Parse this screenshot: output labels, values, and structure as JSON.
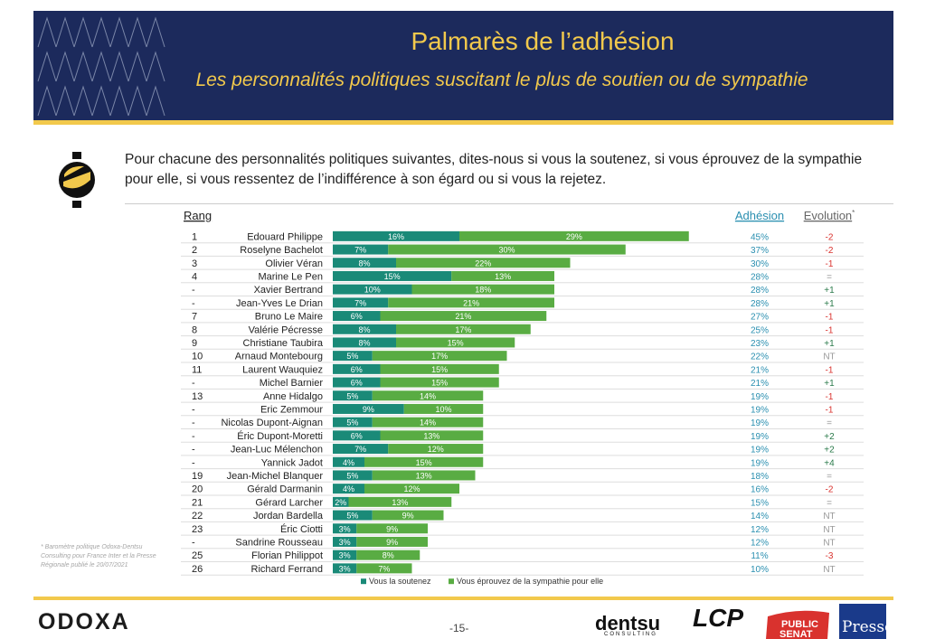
{
  "header": {
    "title": "Palmarès de l’adhésion",
    "subtitle": "Les personnalités politiques suscitant le plus de soutien ou de sympathie"
  },
  "question": "Pour chacune des personnalités politiques suivantes, dites-nous si vous la soutenez, si vous éprouvez de la sympathie pour elle, si vous ressentez de l’indifférence à son égard ou si vous la rejetez.",
  "footnote": "* Baromètre politique Odoxa-Dentsu Consulting pour France Inter et la Presse Régionale publié le 20/07/2021",
  "footer": {
    "brand": "ODOXA",
    "page": "-15-",
    "dentsu": "dentsu",
    "dentsu_sub": "CONSULTING",
    "lcp": "LCP",
    "public_senat": [
      "PUBLIC",
      "SENAT"
    ],
    "presse": "Presse"
  },
  "colors": {
    "navy": "#1c2a5c",
    "gold": "#f2c94c",
    "teal": "#1a8a78",
    "green": "#59ac43",
    "red": "#d9322e",
    "positive": "#2a7a4a",
    "neutral": "#999999"
  },
  "chart_data": {
    "type": "bar",
    "stacked": true,
    "orientation": "horizontal",
    "col_headers": {
      "rank": "Rang",
      "adhesion": "Adhésion",
      "evolution": "Evolution",
      "evolution_mark": "*"
    },
    "series": [
      {
        "name": "Vous la soutenez",
        "key": "support"
      },
      {
        "name": "Vous éprouvez de la sympathie pour elle",
        "key": "sympathy"
      }
    ],
    "rows": [
      {
        "rank": "1",
        "name": "Edouard Philippe",
        "support": 16,
        "sympathy": 29,
        "adhesion": "45%",
        "evolution": "-2"
      },
      {
        "rank": "2",
        "name": "Roselyne Bachelot",
        "support": 7,
        "sympathy": 30,
        "adhesion": "37%",
        "evolution": "-2"
      },
      {
        "rank": "3",
        "name": "Olivier Véran",
        "support": 8,
        "sympathy": 22,
        "adhesion": "30%",
        "evolution": "-1"
      },
      {
        "rank": "4",
        "name": "Marine Le Pen",
        "support": 15,
        "sympathy": 13,
        "adhesion": "28%",
        "evolution": "="
      },
      {
        "rank": "-",
        "name": "Xavier Bertrand",
        "support": 10,
        "sympathy": 18,
        "adhesion": "28%",
        "evolution": "+1"
      },
      {
        "rank": "-",
        "name": "Jean-Yves Le Drian",
        "support": 7,
        "sympathy": 21,
        "adhesion": "28%",
        "evolution": "+1"
      },
      {
        "rank": "7",
        "name": "Bruno Le Maire",
        "support": 6,
        "sympathy": 21,
        "adhesion": "27%",
        "evolution": "-1"
      },
      {
        "rank": "8",
        "name": "Valérie Pécresse",
        "support": 8,
        "sympathy": 17,
        "adhesion": "25%",
        "evolution": "-1"
      },
      {
        "rank": "9",
        "name": "Christiane Taubira",
        "support": 8,
        "sympathy": 15,
        "adhesion": "23%",
        "evolution": "+1"
      },
      {
        "rank": "10",
        "name": "Arnaud Montebourg",
        "support": 5,
        "sympathy": 17,
        "adhesion": "22%",
        "evolution": "NT"
      },
      {
        "rank": "11",
        "name": "Laurent Wauquiez",
        "support": 6,
        "sympathy": 15,
        "adhesion": "21%",
        "evolution": "-1"
      },
      {
        "rank": "-",
        "name": "Michel Barnier",
        "support": 6,
        "sympathy": 15,
        "adhesion": "21%",
        "evolution": "+1"
      },
      {
        "rank": "13",
        "name": "Anne Hidalgo",
        "support": 5,
        "sympathy": 14,
        "adhesion": "19%",
        "evolution": "-1"
      },
      {
        "rank": "-",
        "name": "Eric Zemmour",
        "support": 9,
        "sympathy": 10,
        "adhesion": "19%",
        "evolution": "-1"
      },
      {
        "rank": "-",
        "name": "Nicolas Dupont-Aignan",
        "support": 5,
        "sympathy": 14,
        "adhesion": "19%",
        "evolution": "="
      },
      {
        "rank": "-",
        "name": "Éric Dupont-Moretti",
        "support": 6,
        "sympathy": 13,
        "adhesion": "19%",
        "evolution": "+2"
      },
      {
        "rank": "-",
        "name": "Jean-Luc Mélenchon",
        "support": 7,
        "sympathy": 12,
        "adhesion": "19%",
        "evolution": "+2"
      },
      {
        "rank": "-",
        "name": "Yannick Jadot",
        "support": 4,
        "sympathy": 15,
        "adhesion": "19%",
        "evolution": "+4"
      },
      {
        "rank": "19",
        "name": "Jean-Michel Blanquer",
        "support": 5,
        "sympathy": 13,
        "adhesion": "18%",
        "evolution": "="
      },
      {
        "rank": "20",
        "name": "Gérald Darmanin",
        "support": 4,
        "sympathy": 12,
        "adhesion": "16%",
        "evolution": "-2"
      },
      {
        "rank": "21",
        "name": "Gérard Larcher",
        "support": 2,
        "sympathy": 13,
        "adhesion": "15%",
        "evolution": "="
      },
      {
        "rank": "22",
        "name": "Jordan Bardella",
        "support": 5,
        "sympathy": 9,
        "adhesion": "14%",
        "evolution": "NT"
      },
      {
        "rank": "23",
        "name": "Éric Ciotti",
        "support": 3,
        "sympathy": 9,
        "adhesion": "12%",
        "evolution": "NT"
      },
      {
        "rank": "-",
        "name": "Sandrine Rousseau",
        "support": 3,
        "sympathy": 9,
        "adhesion": "12%",
        "evolution": "NT"
      },
      {
        "rank": "25",
        "name": "Florian Philippot",
        "support": 3,
        "sympathy": 8,
        "adhesion": "11%",
        "evolution": "-3"
      },
      {
        "rank": "26",
        "name": "Richard Ferrand",
        "support": 3,
        "sympathy": 7,
        "adhesion": "10%",
        "evolution": "NT"
      }
    ],
    "legend_position": "bottom"
  }
}
